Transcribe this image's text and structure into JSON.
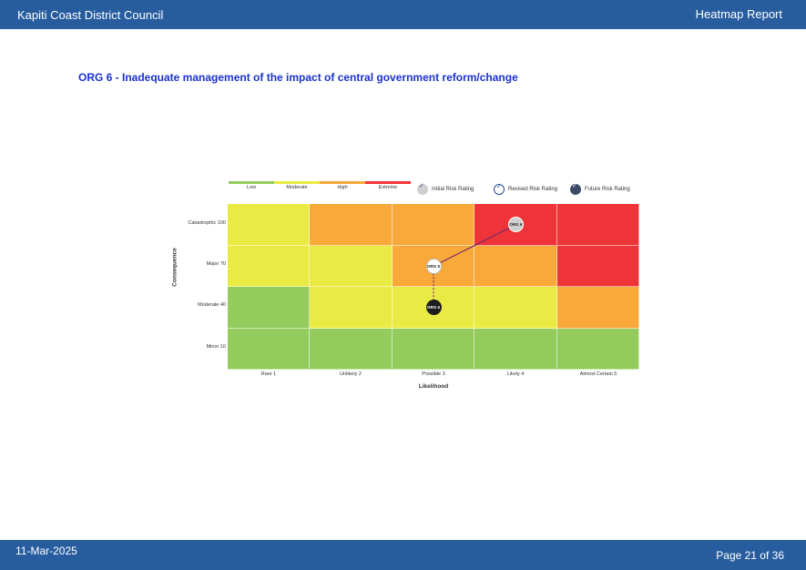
{
  "header": {
    "org": "Kapiti Coast District Council",
    "report": "Heatmap Report"
  },
  "footer": {
    "date": "11-Mar-2025",
    "page": "Page 21 of 36"
  },
  "title": "ORG 6 - Inadequate management of the impact of central government reform/change",
  "legend": {
    "levels": [
      {
        "label": "Low",
        "color": "#93cc5d"
      },
      {
        "label": "Moderate",
        "color": "#eaea44"
      },
      {
        "label": "High",
        "color": "#f8a93a"
      },
      {
        "label": "Extreme",
        "color": "#ee3438"
      }
    ],
    "ratings": [
      {
        "label": "Initial Risk Rating",
        "icon": "initial-rating-icon",
        "color": "#cfcfcf"
      },
      {
        "label": "Revised Risk Rating",
        "icon": "revised-rating-icon",
        "color": "#ffffff"
      },
      {
        "label": "Future Risk Rating",
        "icon": "future-rating-icon",
        "color": "#3d4a66"
      }
    ]
  },
  "matrix": {
    "x_label": "Likelihood",
    "y_label": "Consequence",
    "likelihood": [
      "Rare 1",
      "Unlikely 2",
      "Possible 3",
      "Likely 4",
      "Almost Certain 5"
    ],
    "consequence": [
      "Catastrophic 100",
      "Major 70",
      "Moderate 40",
      "Minor 10"
    ],
    "cells": [
      [
        "Moderate",
        "High",
        "High",
        "Extreme",
        "Extreme"
      ],
      [
        "Moderate",
        "Moderate",
        "High",
        "High",
        "Extreme"
      ],
      [
        "Low",
        "Moderate",
        "Moderate",
        "Moderate",
        "High"
      ],
      [
        "Low",
        "Low",
        "Low",
        "Low",
        "Low"
      ]
    ]
  },
  "markers": [
    {
      "type": "initial",
      "label": "ORG 6",
      "likelihood": "Likely 4",
      "consequence": "Catastrophic 100"
    },
    {
      "type": "revised",
      "label": "ORG 6",
      "likelihood": "Possible 3",
      "consequence": "Major 70"
    },
    {
      "type": "future",
      "label": "ORG 6",
      "likelihood": "Possible 3",
      "consequence": "Moderate 40"
    }
  ]
}
